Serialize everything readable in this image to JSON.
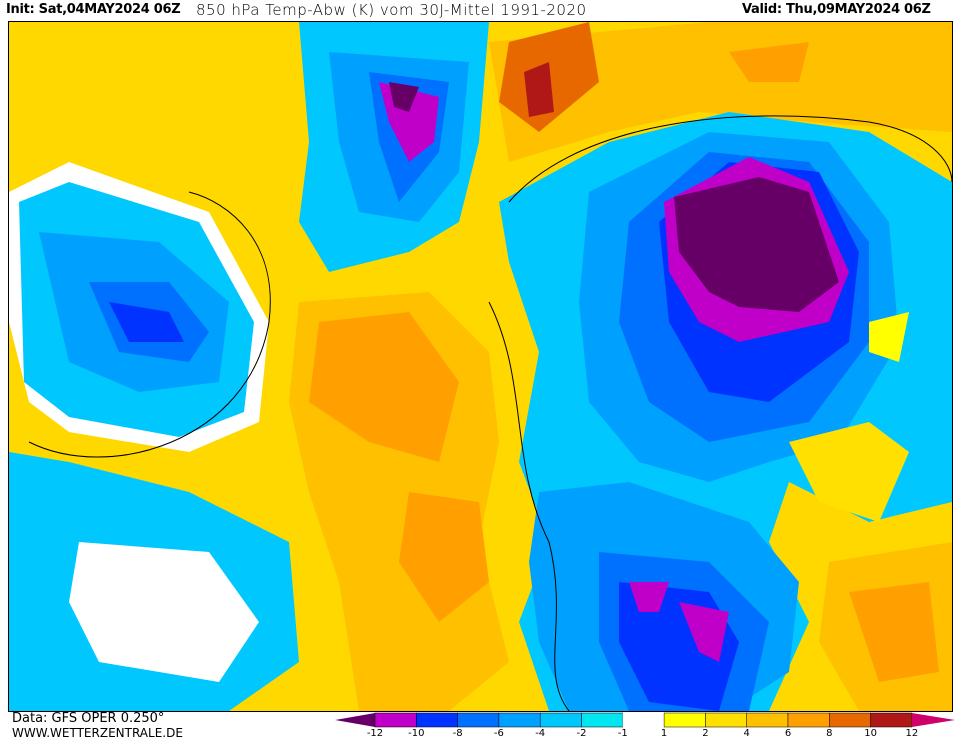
{
  "header": {
    "init": "Init: Sat,04MAY2024 06Z",
    "title": "850 hPa Temp-Abw (K) vom 30J-Mittel 1991-2020",
    "valid": "Valid: Thu,09MAY2024 06Z"
  },
  "footer": {
    "data_source": "Data: GFS OPER 0.250°",
    "website": "WWW.WETTERZENTRALE.DE"
  },
  "legend": {
    "labels": [
      "-12",
      "-10",
      "-8",
      "-6",
      "-4",
      "-2",
      "-1",
      "1",
      "2",
      "4",
      "6",
      "8",
      "10",
      "12"
    ],
    "colors": [
      "#660066",
      "#c000c8",
      "#0033ff",
      "#0070ff",
      "#00a0ff",
      "#00c8ff",
      "#00e6f0",
      "#ffffff",
      "#ffff00",
      "#ffe000",
      "#ffc000",
      "#ffa000",
      "#e86800",
      "#b01818",
      "#d0006a"
    ]
  }
}
